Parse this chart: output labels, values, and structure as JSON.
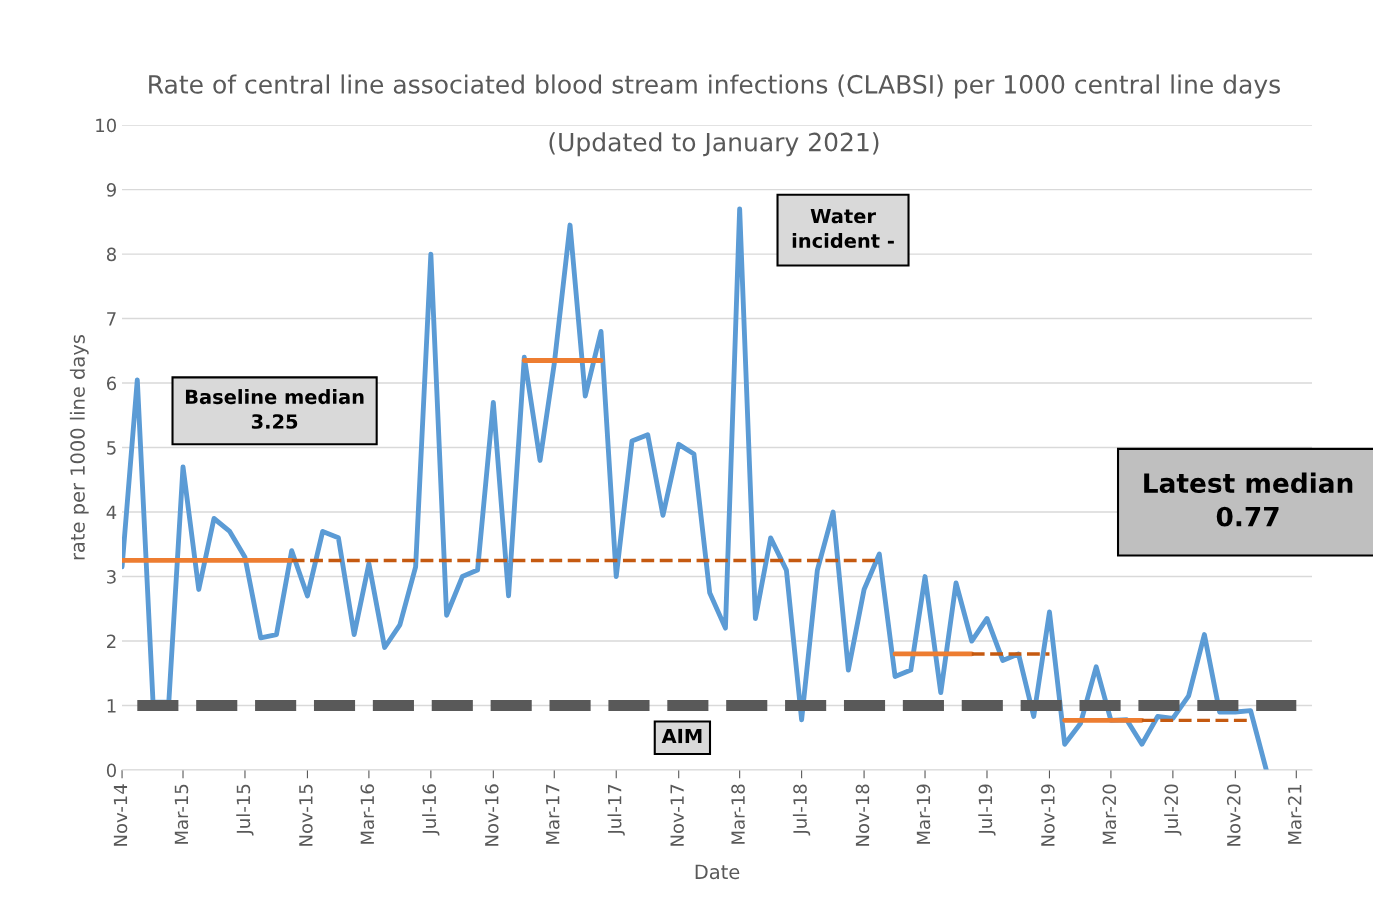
{
  "chart_data": {
    "type": "line",
    "title": "Rate of central line associated blood stream infections (CLABSI) per 1000 central line days",
    "subtitle": "(Updated to January 2021)",
    "xlabel": "Date",
    "ylabel": "rate per 1000 line days",
    "x": [
      "2014-11",
      "2014-12",
      "2015-01",
      "2015-02",
      "2015-03",
      "2015-04",
      "2015-05",
      "2015-06",
      "2015-07",
      "2015-08",
      "2015-09",
      "2015-10",
      "2015-11",
      "2015-12",
      "2016-01",
      "2016-02",
      "2016-03",
      "2016-04",
      "2016-05",
      "2016-06",
      "2016-07",
      "2016-08",
      "2016-09",
      "2016-10",
      "2016-11",
      "2016-12",
      "2017-01",
      "2017-02",
      "2017-03",
      "2017-04",
      "2017-05",
      "2017-06",
      "2017-07",
      "2017-08",
      "2017-09",
      "2017-10",
      "2017-11",
      "2017-12",
      "2018-01",
      "2018-02",
      "2018-03",
      "2018-04",
      "2018-05",
      "2018-06",
      "2018-07",
      "2018-08",
      "2018-09",
      "2018-10",
      "2018-11",
      "2018-12",
      "2019-01",
      "2019-02",
      "2019-03",
      "2019-04",
      "2019-05",
      "2019-06",
      "2019-07",
      "2019-08",
      "2019-09",
      "2019-10",
      "2019-11",
      "2019-12",
      "2020-01",
      "2020-02",
      "2020-03",
      "2020-04",
      "2020-05",
      "2020-06",
      "2020-07",
      "2020-08",
      "2020-09",
      "2020-10",
      "2020-11",
      "2020-12",
      "2021-01"
    ],
    "series": [
      {
        "color": "#5b9bd5",
        "line_style": "solid",
        "values": [
          3.15,
          6.05,
          1.05,
          1.05,
          4.7,
          2.8,
          3.9,
          3.7,
          3.3,
          2.05,
          2.1,
          3.4,
          2.7,
          3.7,
          3.6,
          2.1,
          3.2,
          1.9,
          2.25,
          3.15,
          8.0,
          2.4,
          3.0,
          3.1,
          5.7,
          2.7,
          6.4,
          4.8,
          6.3,
          8.45,
          5.8,
          6.8,
          3.0,
          5.1,
          5.2,
          3.95,
          5.05,
          4.9,
          2.75,
          2.2,
          8.7,
          2.35,
          3.6,
          3.1,
          0.78,
          3.1,
          4.0,
          1.55,
          2.8,
          3.35,
          1.45,
          1.55,
          3.0,
          1.2,
          2.9,
          2.0,
          2.35,
          1.7,
          1.8,
          0.83,
          2.45,
          0.4,
          0.72,
          1.6,
          0.77,
          0.78,
          0.4,
          0.83,
          0.8,
          1.15,
          2.1,
          0.9,
          0.9,
          0.92,
          0.0
        ]
      },
      {
        "color": "#ed7d31",
        "line_style": "solid",
        "x": [
          "2014-11",
          "2015-10"
        ],
        "values": [
          3.25,
          3.25
        ]
      },
      {
        "color": "#c55a11",
        "line_style": "dashed",
        "x": [
          "2015-10",
          "2018-12"
        ],
        "values": [
          3.25,
          3.25
        ]
      },
      {
        "color": "#ed7d31",
        "line_style": "solid",
        "x": [
          "2017-01",
          "2017-06"
        ],
        "values": [
          6.35,
          6.35
        ]
      },
      {
        "color": "#ed7d31",
        "line_style": "solid",
        "x": [
          "2019-01",
          "2019-06"
        ],
        "values": [
          1.8,
          1.8
        ]
      },
      {
        "color": "#c55a11",
        "line_style": "dashed",
        "x": [
          "2019-06",
          "2019-11"
        ],
        "values": [
          1.8,
          1.8
        ]
      },
      {
        "color": "#ed7d31",
        "line_style": "solid",
        "x": [
          "2019-12",
          "2020-05"
        ],
        "values": [
          0.77,
          0.77
        ]
      },
      {
        "color": "#c55a11",
        "line_style": "dashed",
        "x": [
          "2020-05",
          "2020-12"
        ],
        "values": [
          0.77,
          0.77
        ]
      },
      {
        "color": "#595959",
        "line_style": "dashed",
        "x": [
          "2014-12",
          "2021-03"
        ],
        "values": [
          1.0,
          1.0
        ]
      }
    ],
    "annotations": [
      "Baseline median\n3.25",
      "Water\nincident -",
      "AIM",
      "Latest median\n0.77"
    ],
    "xlim": [
      "2014-11",
      "2021-04"
    ],
    "xticks": [
      {
        "value": "2014-11",
        "label": "Nov-14"
      },
      {
        "value": "2015-03",
        "label": "Mar-15"
      },
      {
        "value": "2015-07",
        "label": "Jul-15"
      },
      {
        "value": "2015-11",
        "label": "Nov-15"
      },
      {
        "value": "2016-03",
        "label": "Mar-16"
      },
      {
        "value": "2016-07",
        "label": "Jul-16"
      },
      {
        "value": "2016-11",
        "label": "Nov-16"
      },
      {
        "value": "2017-03",
        "label": "Mar-17"
      },
      {
        "value": "2017-07",
        "label": "Jul-17"
      },
      {
        "value": "2017-11",
        "label": "Nov-17"
      },
      {
        "value": "2018-03",
        "label": "Mar-18"
      },
      {
        "value": "2018-07",
        "label": "Jul-18"
      },
      {
        "value": "2018-11",
        "label": "Nov-18"
      },
      {
        "value": "2019-03",
        "label": "Mar-19"
      },
      {
        "value": "2019-07",
        "label": "Jul-19"
      },
      {
        "value": "2019-11",
        "label": "Nov-19"
      },
      {
        "value": "2020-03",
        "label": "Mar-20"
      },
      {
        "value": "2020-07",
        "label": "Jul-20"
      },
      {
        "value": "2020-11",
        "label": "Nov-20"
      },
      {
        "value": "2021-03",
        "label": "Mar-21"
      }
    ],
    "ylim": [
      0,
      10
    ],
    "yticks": [
      0,
      1,
      2,
      3,
      4,
      5,
      6,
      7,
      8,
      9,
      10
    ],
    "grid": "y",
    "legend": false,
    "marker": "none"
  }
}
